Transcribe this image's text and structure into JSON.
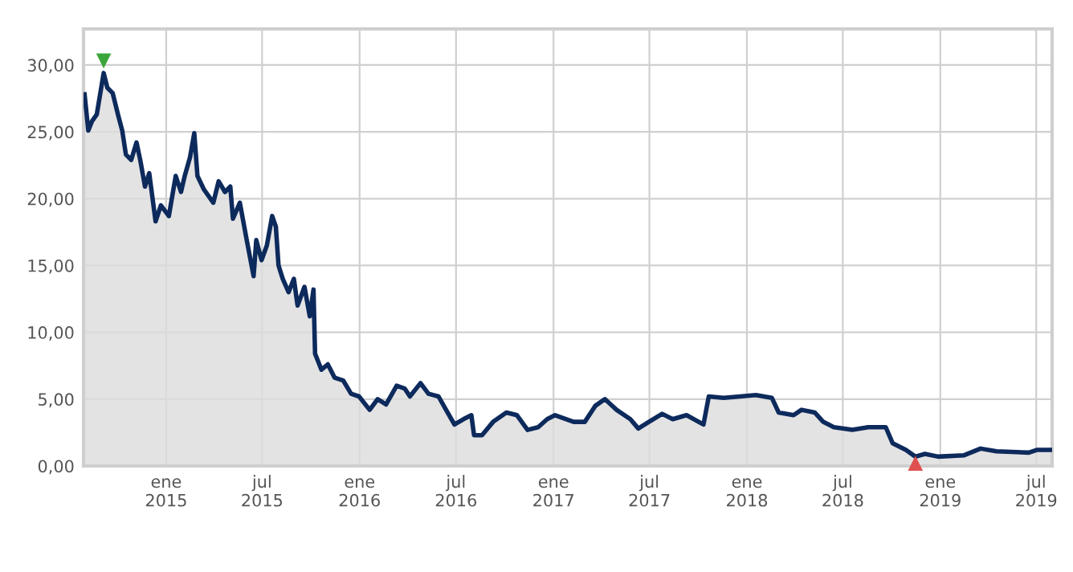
{
  "chart_data": {
    "type": "area",
    "x": [
      "2014-07-31",
      "2014-08-07",
      "2014-08-14",
      "2014-08-23",
      "2014-09-05",
      "2014-09-12",
      "2014-09-22",
      "2014-10-02",
      "2014-10-10",
      "2014-10-17",
      "2014-10-27",
      "2014-11-06",
      "2014-11-13",
      "2014-11-22",
      "2014-11-30",
      "2014-12-12",
      "2014-12-22",
      "2015-01-06",
      "2015-01-19",
      "2015-01-29",
      "2015-02-05",
      "2015-02-15",
      "2015-02-23",
      "2015-03-01",
      "2015-03-13",
      "2015-03-31",
      "2015-04-10",
      "2015-04-22",
      "2015-05-02",
      "2015-05-07",
      "2015-05-20",
      "2015-06-02",
      "2015-06-15",
      "2015-06-20",
      "2015-06-30",
      "2015-07-10",
      "2015-07-20",
      "2015-07-27",
      "2015-08-01",
      "2015-08-09",
      "2015-08-20",
      "2015-08-30",
      "2015-09-06",
      "2015-09-19",
      "2015-09-29",
      "2015-10-06",
      "2015-10-09",
      "2015-10-21",
      "2015-11-02",
      "2015-11-15",
      "2015-12-01",
      "2015-12-16",
      "2015-12-31",
      "2016-01-20",
      "2016-02-04",
      "2016-02-20",
      "2016-03-11",
      "2016-03-26",
      "2016-04-05",
      "2016-04-25",
      "2016-05-10",
      "2016-05-29",
      "2016-06-15",
      "2016-06-28",
      "2016-07-15",
      "2016-07-30",
      "2016-08-04",
      "2016-08-19",
      "2016-09-09",
      "2016-10-04",
      "2016-10-24",
      "2016-11-13",
      "2016-12-03",
      "2016-12-20",
      "2017-01-04",
      "2017-02-08",
      "2017-03-01",
      "2017-03-21",
      "2017-04-08",
      "2017-04-30",
      "2017-05-26",
      "2017-06-10",
      "2017-06-30",
      "2017-07-25",
      "2017-08-14",
      "2017-09-09",
      "2017-10-11",
      "2017-10-21",
      "2017-11-18",
      "2017-12-19",
      "2018-01-18",
      "2018-02-17",
      "2018-03-02",
      "2018-03-30",
      "2018-04-14",
      "2018-05-09",
      "2018-05-25",
      "2018-06-14",
      "2018-07-19",
      "2018-08-18",
      "2018-09-20",
      "2018-10-03",
      "2018-10-28",
      "2018-11-15",
      "2018-12-03",
      "2018-12-28",
      "2019-02-15",
      "2019-03-18",
      "2019-04-17",
      "2019-06-17",
      "2019-07-02",
      "2019-07-29"
    ],
    "series": [
      {
        "color": "#0d2a5c",
        "values": [
          27.8,
          25.1,
          25.8,
          26.3,
          29.4,
          28.3,
          27.9,
          26.3,
          25.1,
          23.3,
          22.9,
          24.2,
          22.9,
          20.9,
          21.9,
          18.3,
          19.5,
          18.7,
          21.7,
          20.5,
          21.7,
          23.1,
          24.9,
          21.7,
          20.7,
          19.7,
          21.3,
          20.5,
          20.9,
          18.5,
          19.7,
          16.9,
          14.2,
          16.9,
          15.4,
          16.5,
          18.7,
          17.9,
          15.0,
          14.0,
          13.0,
          14.0,
          12.0,
          13.4,
          11.2,
          13.2,
          8.4,
          7.2,
          7.6,
          6.6,
          6.4,
          5.4,
          5.2,
          4.2,
          5.0,
          4.6,
          6.0,
          5.8,
          5.2,
          6.2,
          5.4,
          5.2,
          4.0,
          3.1,
          3.5,
          3.8,
          2.3,
          2.3,
          3.3,
          4.0,
          3.8,
          2.7,
          2.9,
          3.5,
          3.8,
          3.3,
          3.3,
          4.5,
          5.0,
          4.2,
          3.5,
          2.8,
          3.3,
          3.9,
          3.5,
          3.8,
          3.1,
          5.2,
          5.1,
          5.2,
          5.3,
          5.1,
          4.0,
          3.8,
          4.2,
          4.0,
          3.3,
          2.9,
          2.7,
          2.9,
          2.9,
          1.7,
          1.2,
          0.7,
          0.9,
          0.7,
          0.8,
          1.3,
          1.1,
          1.0,
          1.2,
          1.2
        ]
      },
      {
        "type": "scatter",
        "x": [
          "2014-09-05",
          "2018-11-15"
        ],
        "values": [
          30.3,
          0.2
        ],
        "colors": [
          "#3aa53a",
          "#e05050"
        ],
        "marker": "triangle"
      }
    ],
    "xlim": [
      "2014-07-29",
      "2019-07-31"
    ],
    "xticks": [
      {
        "value": "2015-01-01",
        "label": "ene\n2015"
      },
      {
        "value": "2015-07-01",
        "label": "jul\n2015"
      },
      {
        "value": "2016-01-01",
        "label": "ene\n2016"
      },
      {
        "value": "2016-07-01",
        "label": "jul\n2016"
      },
      {
        "value": "2017-01-01",
        "label": "ene\n2017"
      },
      {
        "value": "2017-07-01",
        "label": "jul\n2017"
      },
      {
        "value": "2018-01-01",
        "label": "ene\n2018"
      },
      {
        "value": "2018-07-01",
        "label": "jul\n2018"
      },
      {
        "value": "2019-01-01",
        "label": "ene\n2019"
      },
      {
        "value": "2019-07-01",
        "label": "jul\n2019"
      }
    ],
    "ylim": [
      0,
      32.7
    ],
    "yticks": [
      {
        "value": 0,
        "label": "0,00"
      },
      {
        "value": 5,
        "label": "5,00"
      },
      {
        "value": 10,
        "label": "10,00"
      },
      {
        "value": 15,
        "label": "15,00"
      },
      {
        "value": 20,
        "label": "20,00"
      },
      {
        "value": 25,
        "label": "25,00"
      },
      {
        "value": 30,
        "label": "30,00"
      }
    ],
    "grid": true
  }
}
